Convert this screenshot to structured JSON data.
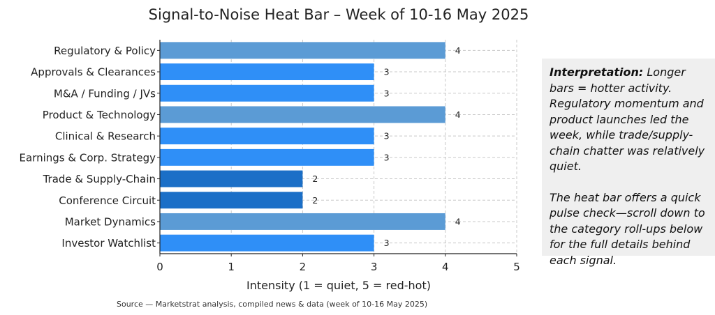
{
  "chart_data": {
    "type": "bar",
    "orientation": "horizontal",
    "title": "Signal-to-Noise Heat Bar – Week of 10-16 May 2025",
    "xlabel": "Intensity (1 = quiet, 5 = red-hot)",
    "ylabel": "",
    "xlim": [
      0,
      5
    ],
    "x_ticks": [
      "0",
      "1",
      "2",
      "3",
      "4",
      "5"
    ],
    "grid": true,
    "categories": [
      "Regulatory & Policy",
      "Approvals & Clearances",
      "M&A / Funding / JVs",
      "Product & Technology",
      "Clinical & Research",
      "Earnings & Corp. Strategy",
      "Trade & Supply-Chain",
      "Conference Circuit",
      "Market Dynamics",
      "Investor Watchlist"
    ],
    "values": [
      4,
      3,
      3,
      4,
      3,
      3,
      2,
      2,
      4,
      3
    ],
    "data_labels": [
      "4",
      "3",
      "3",
      "4",
      "3",
      "3",
      "2",
      "2",
      "4",
      "3"
    ],
    "colors": {
      "intensity_2": "#1b6fc7",
      "intensity_3": "#2f8ff7",
      "intensity_4": "#5b9bd5"
    }
  },
  "note": {
    "lead": "Interpretation:",
    "paragraph1": " Longer bars = hotter activity. Regulatory momentum and product launches led the week, while trade/supply-chain chatter was relatively quiet.",
    "paragraph2": "The heat bar offers a quick pulse check—scroll down to the category roll-ups below for the full details behind each signal."
  },
  "source": "Source — Marketstrat analysis, compiled news & data (week of 10-16 May 2025)"
}
